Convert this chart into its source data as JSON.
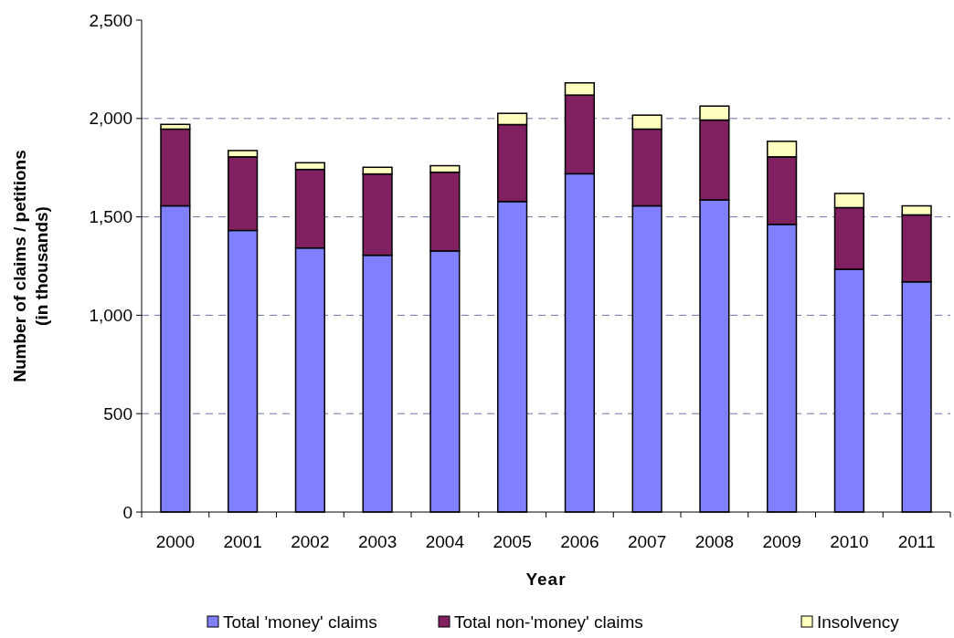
{
  "chart_data": {
    "type": "bar",
    "stacked": true,
    "xlabel": "Year",
    "ylabel": "Number of claims / petitions\n(in thousands)",
    "categories": [
      "2000",
      "2001",
      "2002",
      "2003",
      "2004",
      "2005",
      "2006",
      "2007",
      "2008",
      "2009",
      "2010",
      "2011"
    ],
    "series": [
      {
        "name": "Total 'money' claims",
        "color": "#8080ff",
        "values": [
          1556,
          1431,
          1342,
          1305,
          1327,
          1578,
          1719,
          1556,
          1586,
          1462,
          1234,
          1170
        ]
      },
      {
        "name": "Total non-'money' claims",
        "color": "#802060",
        "values": [
          390,
          374,
          399,
          413,
          400,
          391,
          400,
          390,
          406,
          343,
          313,
          340
        ]
      },
      {
        "name": "Insolvency",
        "color": "#ffffc0",
        "values": [
          24,
          32,
          34,
          34,
          33,
          57,
          62,
          71,
          71,
          79,
          72,
          46
        ]
      }
    ],
    "ylim": [
      0,
      2500
    ],
    "yticks": [
      {
        "value": 0,
        "label": "0"
      },
      {
        "value": 500,
        "label": "500"
      },
      {
        "value": 1000,
        "label": "1,000"
      },
      {
        "value": 1500,
        "label": "1,500"
      },
      {
        "value": 2000,
        "label": "2,000"
      },
      {
        "value": 2500,
        "label": "2,500"
      }
    ],
    "grid": "y",
    "legend": "bottom"
  }
}
